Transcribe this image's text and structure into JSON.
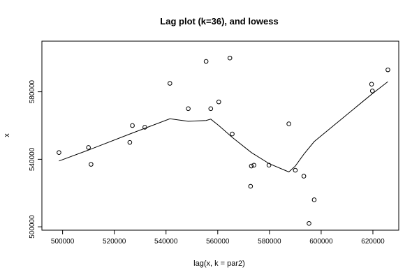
{
  "chart_data": {
    "type": "scatter",
    "title": "Lag plot (k=36), and lowess",
    "xlabel": "lag(x, k = par2)",
    "ylabel": "x",
    "xlim": [
      492000,
      630000
    ],
    "ylim": [
      498000,
      610000
    ],
    "x_ticks": [
      500000,
      520000,
      540000,
      560000,
      580000,
      600000,
      620000
    ],
    "x_tick_labels": [
      "500000",
      "520000",
      "540000",
      "560000",
      "580000",
      "600000",
      "620000"
    ],
    "y_ticks": [
      500000,
      540000,
      580000
    ],
    "y_tick_labels": [
      "500000",
      "540000",
      "580000"
    ],
    "grid": false,
    "points": [
      {
        "x": 498600,
        "y": 544000
      },
      {
        "x": 510000,
        "y": 547000
      },
      {
        "x": 511000,
        "y": 537000
      },
      {
        "x": 526000,
        "y": 550000
      },
      {
        "x": 527000,
        "y": 560000
      },
      {
        "x": 531800,
        "y": 559000
      },
      {
        "x": 541500,
        "y": 585000
      },
      {
        "x": 548600,
        "y": 570000
      },
      {
        "x": 555500,
        "y": 598000
      },
      {
        "x": 557300,
        "y": 570000
      },
      {
        "x": 560400,
        "y": 574000
      },
      {
        "x": 564700,
        "y": 600000
      },
      {
        "x": 565600,
        "y": 555000
      },
      {
        "x": 572700,
        "y": 524000
      },
      {
        "x": 573000,
        "y": 536000
      },
      {
        "x": 574000,
        "y": 536500
      },
      {
        "x": 579800,
        "y": 536500
      },
      {
        "x": 587500,
        "y": 561000
      },
      {
        "x": 590000,
        "y": 533500
      },
      {
        "x": 593300,
        "y": 530000
      },
      {
        "x": 595300,
        "y": 502000
      },
      {
        "x": 597300,
        "y": 516000
      },
      {
        "x": 619500,
        "y": 584500
      },
      {
        "x": 619800,
        "y": 580500
      },
      {
        "x": 625800,
        "y": 593000
      }
    ],
    "lowess": [
      {
        "x": 498600,
        "y": 539000
      },
      {
        "x": 510000,
        "y": 545500
      },
      {
        "x": 526000,
        "y": 555000
      },
      {
        "x": 541500,
        "y": 564000
      },
      {
        "x": 548600,
        "y": 562500
      },
      {
        "x": 555500,
        "y": 563000
      },
      {
        "x": 557300,
        "y": 563800
      },
      {
        "x": 560400,
        "y": 560000
      },
      {
        "x": 565600,
        "y": 553000
      },
      {
        "x": 573000,
        "y": 544000
      },
      {
        "x": 579800,
        "y": 537500
      },
      {
        "x": 587500,
        "y": 532500
      },
      {
        "x": 590000,
        "y": 536000
      },
      {
        "x": 593300,
        "y": 543000
      },
      {
        "x": 597300,
        "y": 550500
      },
      {
        "x": 619500,
        "y": 578500
      },
      {
        "x": 625800,
        "y": 586000
      }
    ]
  }
}
